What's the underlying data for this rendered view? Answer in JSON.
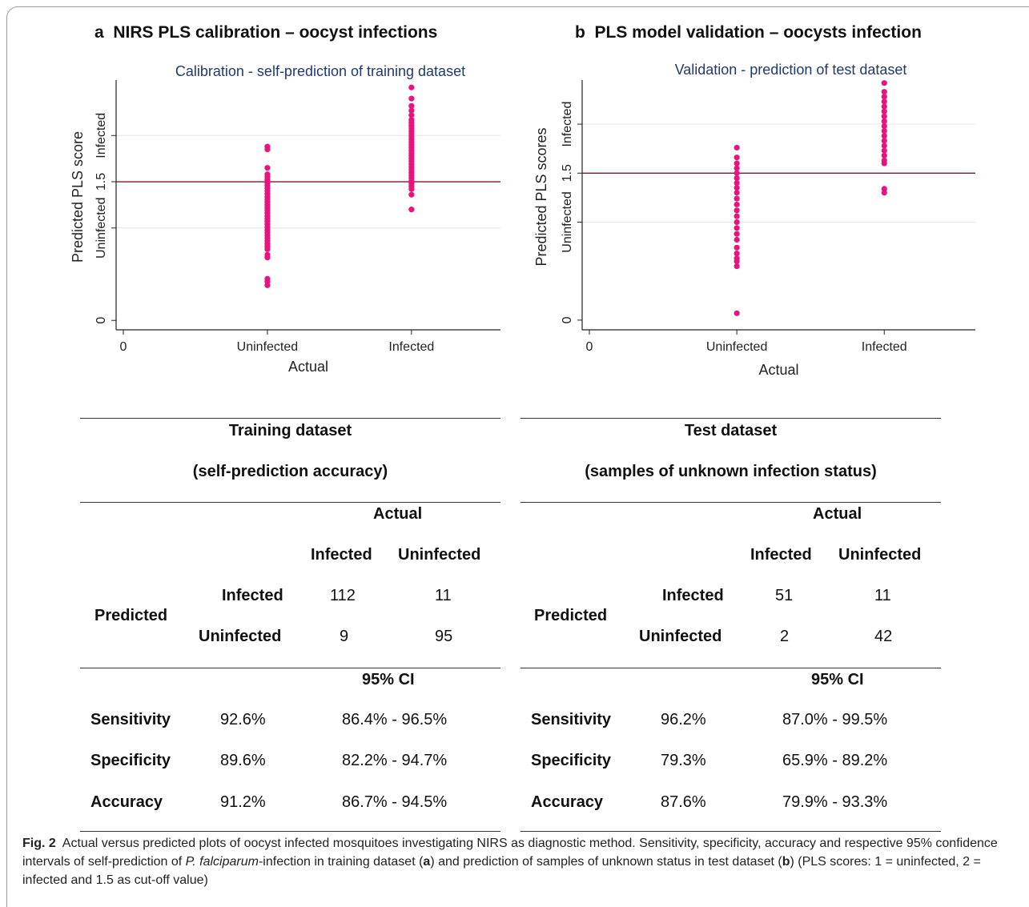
{
  "panels": [
    {
      "letter": "a",
      "title": "NIRS PLS calibration – oocyst infections",
      "chart_title": "Calibration - self-prediction of training dataset"
    },
    {
      "letter": "b",
      "title": "PLS model validation – oocysts infection",
      "chart_title": "Validation - prediction of test dataset"
    }
  ],
  "chart_data": [
    {
      "type": "scatter",
      "title": "Calibration - self-prediction of training dataset",
      "xlabel": "Actual",
      "ylabel": "Predicted PLS score",
      "x_ticks": [
        "0",
        "Uninfected",
        "Infected"
      ],
      "y_ticks": [
        "0",
        "Uninfected",
        "1.5",
        "Infected"
      ],
      "xlim": [
        0,
        2.5
      ],
      "ylim": [
        -0.05,
        2.6
      ],
      "grid": true,
      "cutoff": 1.5,
      "colors": {
        "points": "#e8137e",
        "cutoff_line": "#7a1a2e",
        "grid": "#e3e3e3"
      },
      "series": [
        {
          "x": 1,
          "values": [
            1.88,
            1.85,
            1.65,
            1.58,
            1.55,
            1.52,
            1.49,
            1.46,
            1.43,
            1.4,
            1.37,
            1.34,
            1.31,
            1.28,
            1.25,
            1.22,
            1.19,
            1.16,
            1.13,
            1.1,
            1.07,
            1.04,
            1.01,
            0.98,
            0.95,
            0.92,
            0.89,
            0.86,
            0.83,
            0.8,
            0.77,
            0.71,
            0.68,
            0.45,
            0.42,
            0.38
          ]
        },
        {
          "x": 2,
          "values": [
            2.52,
            2.4,
            2.32,
            2.27,
            2.22,
            2.17,
            2.14,
            2.11,
            2.08,
            2.05,
            2.02,
            1.99,
            1.96,
            1.93,
            1.9,
            1.87,
            1.84,
            1.81,
            1.78,
            1.75,
            1.72,
            1.69,
            1.66,
            1.63,
            1.6,
            1.57,
            1.54,
            1.51,
            1.48,
            1.45,
            1.42,
            1.36,
            1.2
          ]
        }
      ]
    },
    {
      "type": "scatter",
      "title": "Validation - prediction of test dataset",
      "xlabel": "Actual",
      "ylabel": "Predicted PLS scores",
      "x_ticks": [
        "0",
        "Uninfected",
        "Infected"
      ],
      "y_ticks": [
        "0",
        "Uninfected",
        "1.5",
        "Infected"
      ],
      "xlim": [
        0,
        2.5
      ],
      "ylim": [
        -0.05,
        2.45
      ],
      "grid": true,
      "cutoff": 1.5,
      "colors": {
        "points": "#e8137e",
        "cutoff_line": "#7a1a2e",
        "grid": "#e3e3e3"
      },
      "series": [
        {
          "x": 1,
          "values": [
            1.76,
            1.66,
            1.6,
            1.55,
            1.5,
            1.45,
            1.4,
            1.35,
            1.3,
            1.24,
            1.18,
            1.12,
            1.06,
            1.0,
            0.94,
            0.88,
            0.82,
            0.74,
            0.68,
            0.63,
            0.6,
            0.55,
            0.07
          ]
        },
        {
          "x": 2,
          "values": [
            2.42,
            2.33,
            2.28,
            2.23,
            2.18,
            2.13,
            2.08,
            2.03,
            1.98,
            1.93,
            1.88,
            1.83,
            1.78,
            1.73,
            1.68,
            1.63,
            1.6,
            1.34,
            1.3
          ]
        }
      ]
    },
    {
      "type": "table",
      "header": [
        "Training dataset",
        "(self-prediction accuracy)"
      ],
      "actual_label": "Actual",
      "col_labels": [
        "Infected",
        "Uninfected"
      ],
      "predicted_label": "Predicted",
      "rows": [
        {
          "label": "Infected",
          "values": [
            "112",
            "11"
          ]
        },
        {
          "label": "Uninfected",
          "values": [
            "9",
            "95"
          ]
        }
      ],
      "ci_label": "95% CI",
      "stats": [
        {
          "label": "Sensitivity",
          "value": "92.6%",
          "ci": "86.4% - 96.5%"
        },
        {
          "label": "Specificity",
          "value": "89.6%",
          "ci": "82.2% - 94.7%"
        },
        {
          "label": "Accuracy",
          "value": "91.2%",
          "ci": "86.7% - 94.5%"
        }
      ]
    },
    {
      "type": "table",
      "header": [
        "Test dataset",
        "(samples of unknown infection status)"
      ],
      "actual_label": "Actual",
      "col_labels": [
        "Infected",
        "Uninfected"
      ],
      "predicted_label": "Predicted",
      "rows": [
        {
          "label": "Infected",
          "values": [
            "51",
            "11"
          ]
        },
        {
          "label": "Uninfected",
          "values": [
            "2",
            "42"
          ]
        }
      ],
      "ci_label": "95% CI",
      "stats": [
        {
          "label": "Sensitivity",
          "value": "96.2%",
          "ci": "87.0% - 99.5%"
        },
        {
          "label": "Specificity",
          "value": "79.3%",
          "ci": "65.9% - 89.2%"
        },
        {
          "label": "Accuracy",
          "value": "87.6%",
          "ci": "79.9% - 93.3%"
        }
      ]
    }
  ],
  "caption": {
    "fig": "Fig. 2",
    "t1": "Actual versus predicted plots of oocyst infected mosquitoes investigating NIRS as diagnostic method. Sensitivity, specificity, accuracy and respective 95% confidence intervals of self-prediction of ",
    "species": "P. falciparum",
    "t2": "-infection in training dataset (",
    "a": "a",
    "t3": ") and prediction of samples of unknown status in test dataset (",
    "b": "b",
    "t4": ") (PLS scores: 1 = uninfected, 2 = infected and 1.5 as cut-off value)"
  }
}
